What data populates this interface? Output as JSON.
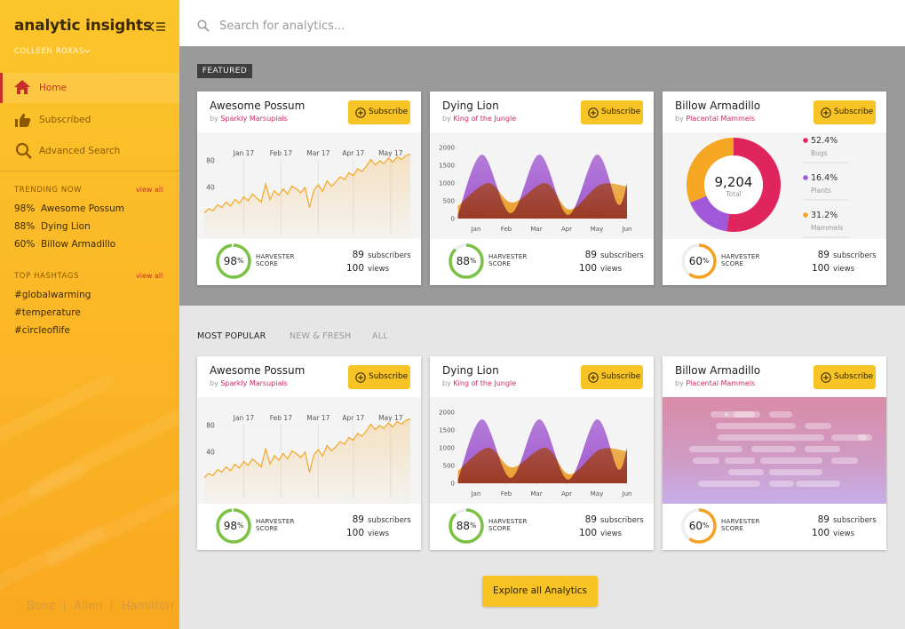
{
  "sidebar": {
    "brand": "analytic insights",
    "user": "COLLEEN ROXAS",
    "nav": [
      "Home",
      "Subscribed",
      "Advanced Search"
    ],
    "trending": {
      "title": "TRENDING NOW",
      "link": "view all",
      "items": [
        {
          "score": "98%",
          "name": "Awesome Possum"
        },
        {
          "score": "88%",
          "name": "Dying Lion"
        },
        {
          "score": "60%",
          "name": "Billow Armadillo"
        }
      ]
    },
    "hashtags": {
      "title": "TOP HASHTAGS",
      "link": "view all",
      "items": [
        "#globalwarming",
        "#temperature",
        "#circleoflife"
      ]
    },
    "footer": [
      "Booz",
      "Allen",
      "Hamilton"
    ]
  },
  "search": {
    "placeholder": "Search for analytics..."
  },
  "featured": {
    "label": "FEATURED",
    "cards": [
      {
        "title": "Awesome Possum",
        "by": "by",
        "author": "Sparkly Marsupials",
        "button": "Subscribe",
        "chart": {
          "type": "line",
          "color": "#f5a623",
          "values": [
            2,
            8,
            5,
            14,
            10,
            18,
            12,
            22,
            16,
            26,
            20,
            30,
            24,
            18,
            45,
            22,
            35,
            28,
            38,
            30,
            42,
            38,
            32,
            40,
            10,
            36,
            44,
            34,
            50,
            42,
            48,
            56,
            52,
            62,
            58,
            68,
            64,
            72,
            82,
            74,
            80,
            76,
            84,
            78,
            86,
            82,
            88,
            90
          ],
          "xlim": [
            0,
            47
          ],
          "xticks": [
            {
              "value": 9,
              "label": "Jan 17"
            },
            {
              "value": 17.5,
              "label": "Feb 17"
            },
            {
              "value": 26,
              "label": "Mar 17"
            },
            {
              "value": 34,
              "label": "Apr 17"
            },
            {
              "value": 42.5,
              "label": "May 17"
            }
          ],
          "ylim": [
            -10,
            120
          ],
          "yticks": [
            40,
            80
          ]
        },
        "score": 98,
        "score_unit": "%",
        "score_color": "#7bc143",
        "score_label": [
          "HARVESTER",
          "SCORE"
        ],
        "subscribers": 89,
        "subscribers_label": "subscribers",
        "views": 100,
        "views_label": "views"
      },
      {
        "title": "Dying Lion",
        "by": "by",
        "author": "King of the Jungle",
        "button": "Subscribe",
        "chart": {
          "type": "area",
          "series": [
            {
              "color": "#a456d8",
              "x": [
                -0.6,
                0.2,
                1.15,
                2.1,
                3.05,
                4.0,
                4.7,
                5.0
              ],
              "values": [
                100,
                1800,
                150,
                1800,
                100,
                1800,
                400,
                1000
              ]
            },
            {
              "color": "#f5a020",
              "x": [
                -0.6,
                0.4,
                1.2,
                2.3,
                3.1,
                4.1,
                5.0
              ],
              "values": [
                350,
                1000,
                450,
                1000,
                250,
                950,
                900
              ]
            }
          ],
          "xlim": [
            -0.6,
            5
          ],
          "xticks": [
            {
              "value": 0,
              "label": "Jan"
            },
            {
              "value": 1,
              "label": "Feb"
            },
            {
              "value": 2,
              "label": "Mar"
            },
            {
              "value": 3,
              "label": "Apr"
            },
            {
              "value": 4,
              "label": "May"
            },
            {
              "value": 5,
              "label": "Jun"
            }
          ],
          "ylim": [
            0,
            2000
          ],
          "yticks": [
            0,
            500,
            1000,
            1500,
            2000
          ]
        },
        "score": 88,
        "score_unit": "%",
        "score_color": "#7bc143",
        "score_label": [
          "HARVESTER",
          "SCORE"
        ],
        "subscribers": 89,
        "subscribers_label": "subscribers",
        "views": 100,
        "views_label": "views"
      },
      {
        "title": "Billow Armadillo",
        "by": "by",
        "author": "Placental Mammels",
        "button": "Subscribe",
        "chart": {
          "type": "pie",
          "categories": [
            "Bugs",
            "Plants",
            "Mammels"
          ],
          "values": [
            52.4,
            16.4,
            31.2
          ],
          "value_labels": [
            "52.4%",
            "16.4%",
            "31.2%"
          ],
          "colors": [
            "#e0245e",
            "#a259d9",
            "#f5a623"
          ],
          "total": {
            "value": 9204,
            "label": "9,204"
          },
          "total_caption": "Total"
        },
        "score": 60,
        "score_unit": "%",
        "score_color": "#f5a020",
        "score_label": [
          "HARVESTER",
          "SCORE"
        ],
        "subscribers": 89,
        "subscribers_label": "subscribers",
        "views": 100,
        "views_label": "views"
      }
    ]
  },
  "popular": {
    "tabs": [
      "MOST POPULAR",
      "NEW & FRESH",
      "ALL"
    ],
    "cards": [
      {
        "title": "Awesome Possum",
        "by": "by",
        "author": "Sparkly Marsupials",
        "button": "Subscribe",
        "chart": {
          "type": "line",
          "color": "#f5a623",
          "values": [
            2,
            8,
            5,
            14,
            10,
            18,
            12,
            22,
            16,
            26,
            20,
            30,
            24,
            18,
            45,
            22,
            35,
            28,
            38,
            30,
            42,
            38,
            32,
            40,
            10,
            36,
            44,
            34,
            50,
            42,
            48,
            56,
            52,
            62,
            58,
            68,
            64,
            72,
            82,
            74,
            80,
            76,
            84,
            78,
            86,
            82,
            88,
            90
          ],
          "xlim": [
            0,
            47
          ],
          "xticks": [
            {
              "value": 9,
              "label": "Jan 17"
            },
            {
              "value": 17.5,
              "label": "Feb 17"
            },
            {
              "value": 26,
              "label": "Mar 17"
            },
            {
              "value": 34,
              "label": "Apr 17"
            },
            {
              "value": 42.5,
              "label": "May 17"
            }
          ],
          "ylim": [
            -10,
            120
          ],
          "yticks": [
            40,
            80
          ]
        },
        "score": 98,
        "score_unit": "%",
        "score_color": "#7bc143",
        "score_label": [
          "HARVESTER",
          "SCORE"
        ],
        "subscribers": 89,
        "subscribers_label": "subscribers",
        "views": 100,
        "views_label": "views"
      },
      {
        "title": "Dying Lion",
        "by": "by",
        "author": "King of the Jungle",
        "button": "Subscribe",
        "chart": {
          "type": "area",
          "series": [
            {
              "color": "#a456d8",
              "x": [
                -0.6,
                0.2,
                1.15,
                2.1,
                3.05,
                4.0,
                4.7,
                5.0
              ],
              "values": [
                100,
                1800,
                150,
                1800,
                100,
                1800,
                400,
                1000
              ]
            },
            {
              "color": "#f5a020",
              "x": [
                -0.6,
                0.4,
                1.2,
                2.3,
                3.1,
                4.1,
                5.0
              ],
              "values": [
                350,
                1000,
                450,
                1000,
                250,
                950,
                900
              ]
            }
          ],
          "xlim": [
            -0.6,
            5
          ],
          "xticks": [
            {
              "value": 0,
              "label": "Jan"
            },
            {
              "value": 1,
              "label": "Feb"
            },
            {
              "value": 2,
              "label": "Mar"
            },
            {
              "value": 3,
              "label": "Apr"
            },
            {
              "value": 4,
              "label": "May"
            },
            {
              "value": 5,
              "label": "Jun"
            }
          ],
          "ylim": [
            0,
            2000
          ],
          "yticks": [
            0,
            500,
            1000,
            1500,
            2000
          ]
        },
        "score": 88,
        "score_unit": "%",
        "score_color": "#7bc143",
        "score_label": [
          "HARVESTER",
          "SCORE"
        ],
        "subscribers": 89,
        "subscribers_label": "subscribers",
        "views": 100,
        "views_label": "views"
      },
      {
        "title": "Billow Armadillo",
        "by": "by",
        "author": "Placental Mammels",
        "button": "Subscribe",
        "score": 60,
        "score_unit": "%",
        "score_color": "#f5a020",
        "score_label": [
          "HARVESTER",
          "SCORE"
        ],
        "subscribers": 89,
        "subscribers_label": "subscribers",
        "views": 100,
        "views_label": "views"
      }
    ]
  },
  "explore": "Explore all Analytics"
}
